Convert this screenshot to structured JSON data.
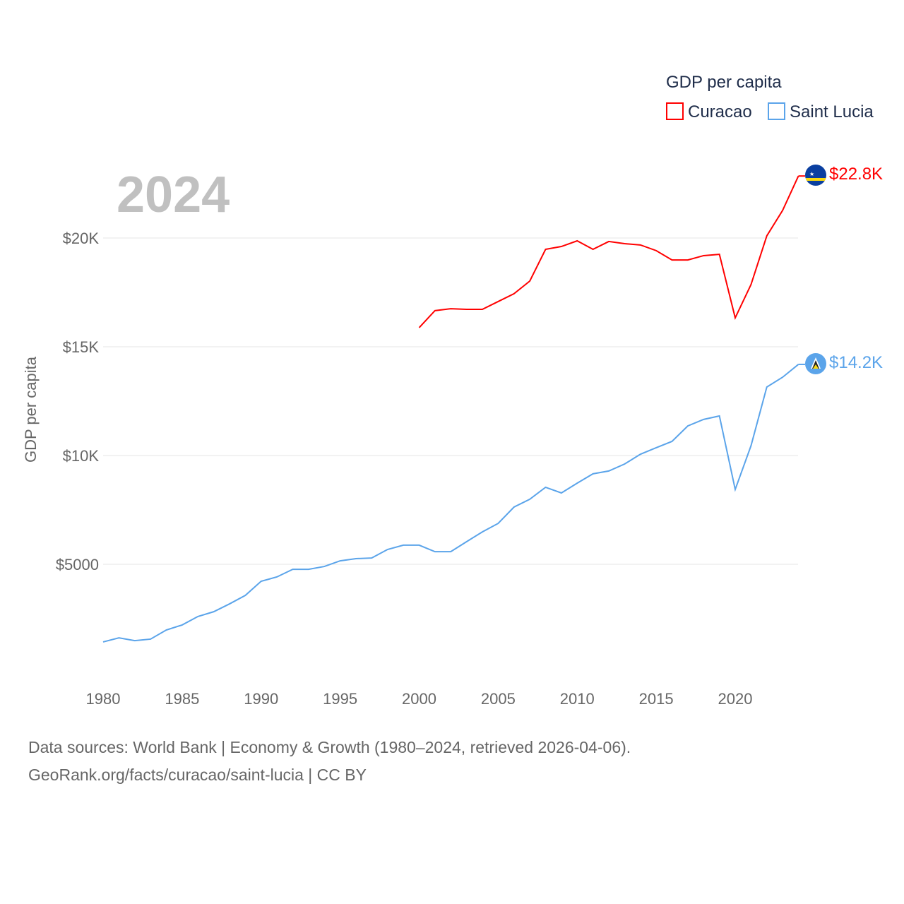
{
  "chart_data": {
    "type": "line",
    "title": "GDP per capita",
    "year_label": "2024",
    "xlabel": "",
    "ylabel": "GDP per capita",
    "xlim": [
      1980,
      2024
    ],
    "ylim": [
      0,
      23000
    ],
    "x_ticks": [
      1980,
      1985,
      1990,
      1995,
      2000,
      2005,
      2010,
      2015,
      2020
    ],
    "y_ticks": [
      {
        "value": 5000,
        "label": "$5000"
      },
      {
        "value": 10000,
        "label": "$10K"
      },
      {
        "value": 15000,
        "label": "$15K"
      },
      {
        "value": 20000,
        "label": "$20K"
      }
    ],
    "grid": true,
    "legend_placement": "top-right",
    "series": [
      {
        "name": "Curacao",
        "color": "#ff0000",
        "end_label": "$22.8K",
        "flag": "curacao-flag",
        "x": [
          2000,
          2001,
          2002,
          2003,
          2004,
          2005,
          2006,
          2007,
          2008,
          2009,
          2010,
          2011,
          2012,
          2013,
          2014,
          2015,
          2016,
          2017,
          2018,
          2019,
          2020,
          2021,
          2022,
          2023,
          2024
        ],
        "values": [
          15880,
          16660,
          16750,
          16720,
          16720,
          17080,
          17440,
          18020,
          19480,
          19610,
          19870,
          19480,
          19840,
          19740,
          19680,
          19420,
          18990,
          18990,
          19190,
          19250,
          16330,
          17860,
          20100,
          21270,
          22850
        ]
      },
      {
        "name": "Saint Lucia",
        "color": "#5ba4ea",
        "end_label": "$14.2K",
        "flag": "saint-lucia-flag",
        "x": [
          1980,
          1981,
          1982,
          1983,
          1984,
          1985,
          1986,
          1987,
          1988,
          1989,
          1990,
          1991,
          1992,
          1993,
          1994,
          1995,
          1996,
          1997,
          1998,
          1999,
          2000,
          2001,
          2002,
          2003,
          2004,
          2005,
          2006,
          2007,
          2008,
          2009,
          2010,
          2011,
          2012,
          2013,
          2014,
          2015,
          2016,
          2017,
          2018,
          2019,
          2020,
          2021,
          2022,
          2023,
          2024
        ],
        "values": [
          1430,
          1620,
          1490,
          1560,
          1980,
          2210,
          2600,
          2820,
          3180,
          3570,
          4220,
          4420,
          4770,
          4770,
          4900,
          5160,
          5260,
          5290,
          5680,
          5880,
          5880,
          5580,
          5580,
          6040,
          6490,
          6880,
          7630,
          7990,
          8540,
          8280,
          8730,
          9160,
          9290,
          9610,
          10060,
          10360,
          10650,
          11360,
          11660,
          11820,
          8440,
          10450,
          13150,
          13600,
          14190
        ]
      }
    ]
  },
  "footer": {
    "line1": "Data sources: World Bank | Economy & Growth (1980–2024, retrieved 2026-04-06).",
    "line2": "GeoRank.org/facts/curacao/saint-lucia | CC BY"
  }
}
